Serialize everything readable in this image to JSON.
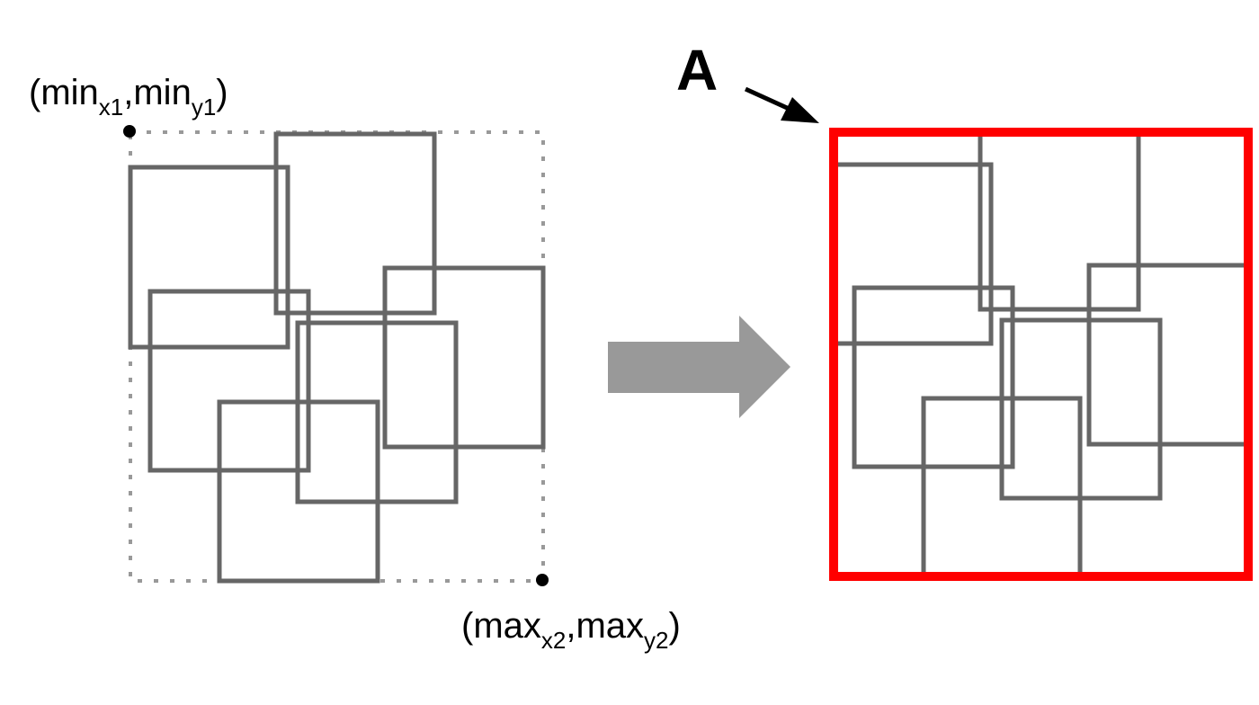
{
  "labels": {
    "top_left_open": "(min",
    "top_left_sub1": "x1",
    "top_left_mid": ",min",
    "top_left_sub2": "y1",
    "top_left_close": ")",
    "bottom_right_open": "(max",
    "bottom_right_sub1": "x2",
    "bottom_right_mid": ",max",
    "bottom_right_sub2": "y2",
    "bottom_right_close": ")",
    "callout": "A"
  },
  "colors": {
    "box_stroke": "#666666",
    "bounds_dotted": "#999999",
    "arrow_fill": "#999999",
    "highlight": "#ff0000",
    "marker": "#000000",
    "text": "#000000"
  },
  "diagram": {
    "left_box_count": 6,
    "right_box_count": 6,
    "transform_arrow": "right-arrow",
    "callout_arrow": "pointer-arrow",
    "corner_markers": [
      "top-left",
      "bottom-right"
    ]
  }
}
